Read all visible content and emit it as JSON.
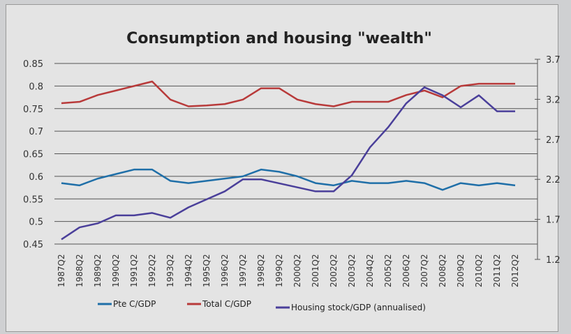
{
  "chart_data": {
    "type": "line",
    "title": "Consumption and housing \"wealth\"",
    "xlabel": "",
    "ylabel": "",
    "categories": [
      "1987Q2",
      "1988Q2",
      "1989Q2",
      "1990Q2",
      "1991Q2",
      "1992Q2",
      "1993Q2",
      "1994Q2",
      "1995Q2",
      "1996Q2",
      "1997Q2",
      "1998Q2",
      "1999Q2",
      "2000Q2",
      "2001Q2",
      "2002Q2",
      "2003Q2",
      "2004Q2",
      "2005Q2",
      "2006Q2",
      "2007Q2",
      "2008Q2",
      "2009Q2",
      "2010Q2",
      "2011Q2",
      "2012Q2"
    ],
    "ylim": [
      0.45,
      0.85
    ],
    "yticks": [
      "0.85",
      "0.8",
      "0.75",
      "0.7",
      "0.65",
      "0.6",
      "0.55",
      "0.5",
      "0.45"
    ],
    "y2lim": [
      1.2,
      3.7
    ],
    "y2ticks": [
      "3.7",
      "3.2",
      "2.7",
      "2.2",
      "1.7",
      "1.2"
    ],
    "grid": true,
    "legend_position": "bottom",
    "series": [
      {
        "name": "Pte C/GDP",
        "axis": "left",
        "color": "#1f6fa8",
        "values": [
          0.585,
          0.58,
          0.595,
          0.605,
          0.615,
          0.615,
          0.59,
          0.585,
          0.59,
          0.595,
          0.6,
          0.615,
          0.61,
          0.6,
          0.585,
          0.58,
          0.59,
          0.585,
          0.585,
          0.59,
          0.585,
          0.57,
          0.585,
          0.58,
          0.585,
          0.58
        ]
      },
      {
        "name": "Total C/GDP",
        "axis": "left",
        "color": "#b83a3a",
        "values": [
          0.762,
          0.765,
          0.78,
          0.79,
          0.8,
          0.81,
          0.77,
          0.755,
          0.757,
          0.76,
          0.77,
          0.795,
          0.795,
          0.77,
          0.76,
          0.755,
          0.765,
          0.765,
          0.765,
          0.78,
          0.79,
          0.775,
          0.8,
          0.805,
          0.805,
          0.805
        ]
      },
      {
        "name": "Housing stock/GDP (annualised)",
        "axis": "right",
        "color": "#4a3f9a",
        "values": [
          1.45,
          1.6,
          1.65,
          1.75,
          1.75,
          1.78,
          1.72,
          1.85,
          1.95,
          2.05,
          2.2,
          2.2,
          2.15,
          2.1,
          2.05,
          2.05,
          2.25,
          2.6,
          2.85,
          3.15,
          3.35,
          3.25,
          3.1,
          3.25,
          3.05,
          3.05
        ]
      }
    ]
  }
}
